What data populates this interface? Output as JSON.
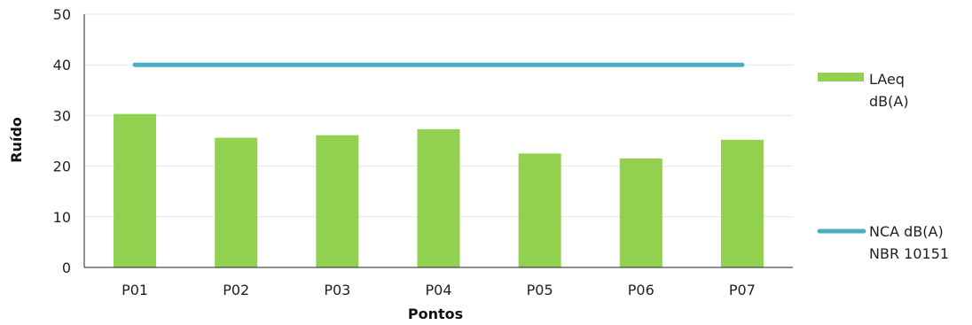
{
  "chart_data": {
    "type": "bar",
    "categories": [
      "P01",
      "P02",
      "P03",
      "P04",
      "P05",
      "P06",
      "P07"
    ],
    "series": [
      {
        "name": "LAeq dB(A)",
        "type": "bar",
        "color": "#92d050",
        "values": [
          30.3,
          25.6,
          26.1,
          27.3,
          22.5,
          21.5,
          25.2
        ]
      },
      {
        "name": "NCA dB(A) NBR 10151",
        "type": "line",
        "color": "#4bacc6",
        "values": [
          40,
          40,
          40,
          40,
          40,
          40,
          40
        ]
      }
    ],
    "xlabel": "Pontos",
    "ylabel": "Ruído",
    "ylim": [
      0,
      50
    ],
    "yticks": [
      0,
      10,
      20,
      30,
      40,
      50
    ],
    "grid": true,
    "legend": {
      "position": "right",
      "entries": [
        {
          "line1": "LAeq",
          "line2": "dB(A)"
        },
        {
          "line1": "NCA dB(A)",
          "line2": "NBR 10151"
        }
      ]
    }
  }
}
